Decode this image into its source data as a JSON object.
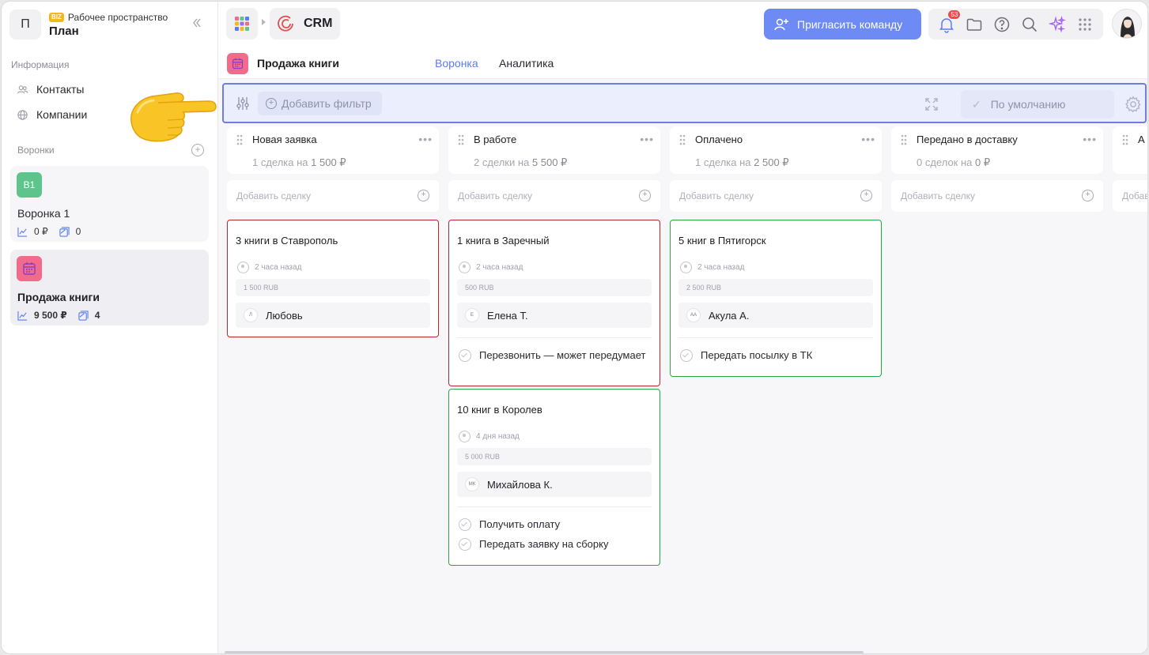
{
  "workspace": {
    "initial": "П",
    "badge": "BIZ",
    "label": "Рабочее пространство",
    "title": "План"
  },
  "sidebar": {
    "info_label": "Информация",
    "items": [
      {
        "label": "Контакты",
        "icon": "contacts-icon"
      },
      {
        "label": "Компании",
        "icon": "globe-icon"
      }
    ],
    "funnels_label": "Воронки",
    "funnels": [
      {
        "badge": "В1",
        "name": "Воронка 1",
        "sum": "0 ₽",
        "count": "0",
        "color": "#5fc48c"
      },
      {
        "badge": "",
        "name": "Продажа книги",
        "sum": "9 500 ₽",
        "count": "4",
        "color": "#f36b8a"
      }
    ]
  },
  "topbar": {
    "crm_label": "CRM",
    "invite_label": "Пригласить команду",
    "notifications_count": "53"
  },
  "subbar": {
    "title": "Продажа книги",
    "tabs": [
      {
        "label": "Воронка",
        "active": true
      },
      {
        "label": "Аналитика",
        "active": false
      }
    ]
  },
  "filter": {
    "add_label": "Добавить фильтр",
    "default_label": "По умолчанию"
  },
  "columns": [
    {
      "title": "Новая заявка",
      "sum_prefix": "1 сделка на",
      "sum_value": "1 500 ₽",
      "add_label": "Добавить сделку"
    },
    {
      "title": "В работе",
      "sum_prefix": "2 сделки на",
      "sum_value": "5 500 ₽",
      "add_label": "Добавить сделку"
    },
    {
      "title": "Оплачено",
      "sum_prefix": "1 сделка на",
      "sum_value": "2 500 ₽",
      "add_label": "Добавить сделку"
    },
    {
      "title": "Передано в доставку",
      "sum_prefix": "0 сделок на",
      "sum_value": "0 ₽",
      "add_label": "Добавить сделку"
    },
    {
      "title": "А",
      "sum_prefix": "",
      "sum_value": "",
      "add_label": "Добав"
    }
  ],
  "deals": [
    {
      "title": "3 книги в Ставрополь",
      "time": "2 часа назад",
      "price": "1 500 RUB",
      "initials": "Л",
      "person": "Любовь",
      "tasks": [],
      "status": "red"
    },
    {
      "title": "1 книга в Заречный",
      "time": "2 часа назад",
      "price": "500 RUB",
      "initials": "Е",
      "person": "Елена Т.",
      "tasks": [
        "Перезвонить — может передумает"
      ],
      "status": "red"
    },
    {
      "title": "10 книг в Королев",
      "time": "4 дня назад",
      "price": "5 000 RUB",
      "initials": "МК",
      "person": "Михайлова К.",
      "tasks": [
        "Получить оплату",
        "Передать заявку на сборку"
      ],
      "status": "green"
    },
    {
      "title": "5 книг в Пятигорск",
      "time": "2 часа назад",
      "price": "2 500 RUB",
      "initials": "АА",
      "person": "Акула А.",
      "tasks": [
        "Передать посылку в ТК"
      ],
      "status": "green"
    }
  ]
}
